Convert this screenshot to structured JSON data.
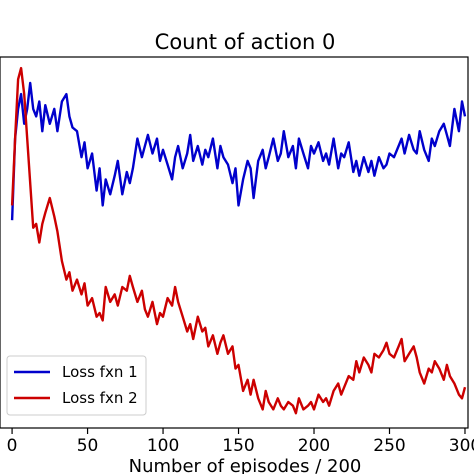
{
  "chart_data": {
    "type": "line",
    "title": "Count of action 0",
    "xlabel": "Number of episodes / 200",
    "ylabel": "",
    "xlim": [
      -8,
      302
    ],
    "ylim": [
      0,
      100
    ],
    "xticks": [
      0,
      50,
      100,
      150,
      200,
      250,
      300
    ],
    "xtick_labels": [
      "0",
      "50",
      "100",
      "150",
      "200",
      "250",
      "300"
    ],
    "yticks": [],
    "grid": false,
    "legend": {
      "position": "lower-left"
    },
    "series": [
      {
        "name": "Loss fxn 1",
        "color": "#0000cc",
        "x": [
          0,
          2,
          4,
          6,
          8,
          10,
          12,
          14,
          16,
          18,
          20,
          22,
          25,
          28,
          30,
          33,
          36,
          38,
          40,
          43,
          46,
          48,
          50,
          53,
          56,
          58,
          60,
          62,
          65,
          68,
          70,
          73,
          76,
          78,
          80,
          83,
          86,
          88,
          90,
          93,
          96,
          98,
          100,
          103,
          106,
          108,
          110,
          113,
          116,
          118,
          120,
          123,
          126,
          128,
          130,
          133,
          136,
          138,
          140,
          143,
          146,
          148,
          150,
          153,
          156,
          158,
          160,
          163,
          166,
          168,
          170,
          173,
          176,
          178,
          180,
          183,
          186,
          188,
          190,
          193,
          196,
          198,
          200,
          203,
          206,
          208,
          210,
          213,
          216,
          218,
          220,
          223,
          226,
          228,
          230,
          233,
          236,
          238,
          240,
          243,
          246,
          248,
          250,
          253,
          256,
          258,
          260,
          263,
          266,
          268,
          270,
          273,
          276,
          278,
          280,
          283,
          286,
          288,
          290,
          293,
          296,
          298,
          300
        ],
        "y": [
          56,
          78,
          86,
          90,
          82,
          86,
          93,
          86,
          84,
          88,
          80,
          87,
          82,
          86,
          80,
          88,
          90,
          84,
          81,
          80,
          73,
          77,
          70,
          74,
          64,
          70,
          60,
          67,
          63,
          68,
          72,
          63,
          69,
          66,
          70,
          78,
          73,
          76,
          79,
          74,
          78,
          72,
          75,
          71,
          67,
          73,
          76,
          70,
          74,
          79,
          72,
          76,
          71,
          75,
          73,
          78,
          70,
          76,
          73,
          71,
          66,
          70,
          60,
          67,
          72,
          70,
          62,
          72,
          75,
          70,
          73,
          78,
          72,
          74,
          80,
          73,
          76,
          70,
          78,
          74,
          70,
          76,
          74,
          77,
          72,
          74,
          71,
          78,
          70,
          74,
          73,
          77,
          69,
          72,
          68,
          73,
          69,
          72,
          68,
          73,
          70,
          71,
          74,
          73,
          76,
          78,
          74,
          79,
          75,
          74,
          80,
          75,
          72,
          78,
          76,
          80,
          82,
          79,
          76,
          86,
          80,
          88,
          84
        ]
      },
      {
        "name": "Loss fxn 2",
        "color": "#cc0000",
        "x": [
          0,
          2,
          4,
          6,
          8,
          10,
          12,
          14,
          16,
          18,
          20,
          22,
          25,
          28,
          30,
          33,
          36,
          38,
          40,
          43,
          46,
          48,
          50,
          53,
          56,
          58,
          60,
          62,
          65,
          68,
          70,
          73,
          76,
          78,
          80,
          83,
          86,
          88,
          90,
          93,
          96,
          98,
          100,
          103,
          106,
          108,
          110,
          113,
          116,
          118,
          120,
          123,
          126,
          128,
          130,
          133,
          136,
          138,
          140,
          143,
          146,
          148,
          150,
          153,
          156,
          158,
          160,
          163,
          166,
          168,
          170,
          173,
          176,
          178,
          180,
          183,
          186,
          188,
          190,
          193,
          196,
          198,
          200,
          203,
          206,
          208,
          210,
          213,
          216,
          218,
          220,
          223,
          226,
          228,
          230,
          233,
          236,
          238,
          240,
          243,
          246,
          248,
          250,
          253,
          256,
          258,
          260,
          263,
          266,
          268,
          270,
          273,
          276,
          278,
          280,
          283,
          286,
          288,
          290,
          293,
          296,
          298,
          300
        ],
        "y": [
          60,
          78,
          94,
          97,
          90,
          78,
          66,
          54,
          55,
          50,
          55,
          58,
          62,
          57,
          53,
          45,
          40,
          42,
          37,
          40,
          36,
          39,
          33,
          35,
          30,
          31,
          29,
          38,
          34,
          36,
          33,
          38,
          37,
          41,
          38,
          34,
          37,
          32,
          30,
          34,
          28,
          31,
          30,
          35,
          33,
          38,
          34,
          30,
          26,
          28,
          24,
          30,
          26,
          27,
          22,
          25,
          20,
          23,
          25,
          20,
          22,
          16,
          17,
          10,
          13,
          9,
          13,
          8,
          5,
          10,
          7,
          5,
          8,
          6,
          5,
          7,
          6,
          4,
          8,
          5,
          6,
          7,
          5,
          9,
          7,
          8,
          6,
          10,
          12,
          9,
          11,
          14,
          13,
          18,
          15,
          19,
          17,
          15,
          20,
          19,
          21,
          23,
          20,
          19,
          22,
          24,
          18,
          20,
          22,
          19,
          15,
          12,
          16,
          15,
          18,
          16,
          13,
          17,
          14,
          12,
          9,
          8,
          11
        ]
      }
    ]
  }
}
